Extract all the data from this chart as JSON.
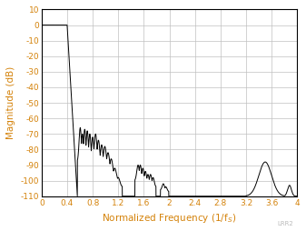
{
  "title": "",
  "xlabel": "Normalized Frequency (1/f_S)",
  "ylabel": "Magnitude (dB)",
  "xlim": [
    0,
    4
  ],
  "ylim": [
    -110,
    10
  ],
  "xticks": [
    0,
    0.4,
    0.8,
    1.2,
    1.6,
    2.0,
    2.4,
    2.8,
    3.2,
    3.6,
    4.0
  ],
  "yticks": [
    10,
    0,
    -10,
    -20,
    -30,
    -40,
    -50,
    -60,
    -70,
    -80,
    -90,
    -100,
    -110
  ],
  "xtick_labels": [
    "0",
    "0.4",
    "0.8",
    "1.2",
    "1.6",
    "2",
    "2.4",
    "2.8",
    "3.2",
    "3.6",
    "4"
  ],
  "ytick_labels": [
    "10",
    "0",
    "-10",
    "-20",
    "-30",
    "-40",
    "-50",
    "-60",
    "-70",
    "-80",
    "-90",
    "-100",
    "-110"
  ],
  "line_color": "#000000",
  "grid_color": "#c0c0c0",
  "axis_label_color": "#d4820a",
  "tick_label_color": "#d4820a",
  "background_color": "#ffffff",
  "watermark": "LRR2"
}
